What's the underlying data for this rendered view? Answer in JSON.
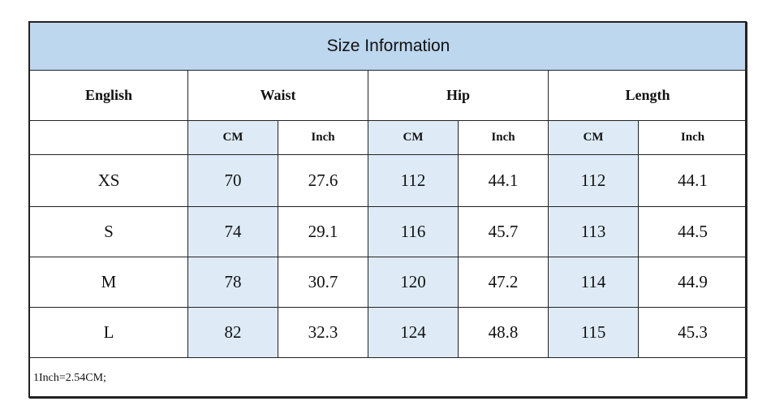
{
  "title": "Size Information",
  "headers": [
    "English",
    "Waist",
    "Hip",
    "Length"
  ],
  "subheaders": [
    "CM",
    "Inch",
    "CM",
    "Inch",
    "CM",
    "Inch"
  ],
  "rows": [
    [
      "XS",
      70,
      27.6,
      112,
      44.1,
      112,
      44.1
    ],
    [
      "S",
      74,
      29.1,
      116,
      45.7,
      113,
      44.5
    ],
    [
      "M",
      78,
      30.7,
      120,
      47.2,
      114,
      44.9
    ],
    [
      "L",
      82,
      32.3,
      124,
      48.8,
      115,
      45.3
    ]
  ],
  "note": "1Inch=2.54CM;"
}
